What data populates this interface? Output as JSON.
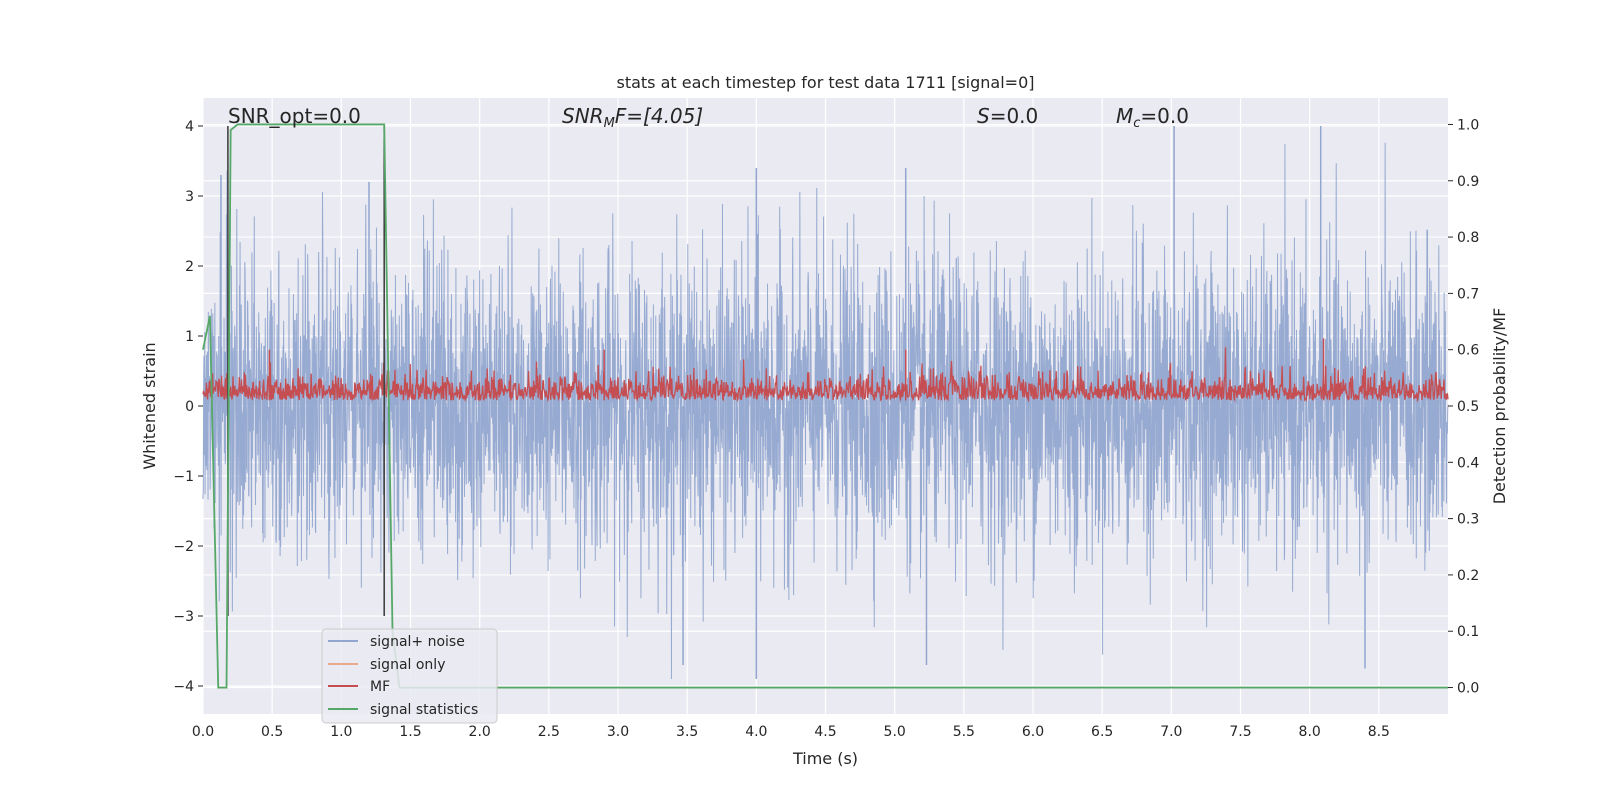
{
  "chart_data": {
    "type": "line",
    "title": "stats at each timestep for test data 1711 [signal=0]",
    "xlabel": "Time (s)",
    "ylabel": "Whitened strain",
    "y2label": "Detection probability/MF",
    "xlim": [
      0,
      9.0
    ],
    "ylim": [
      -4.4,
      4.4
    ],
    "y2lim": [
      -0.047,
      1.047
    ],
    "xticks": [
      "0.0",
      "0.5",
      "1.0",
      "1.5",
      "2.0",
      "2.5",
      "3.0",
      "3.5",
      "4.0",
      "4.5",
      "5.0",
      "5.5",
      "6.0",
      "6.5",
      "7.0",
      "7.5",
      "8.0",
      "8.5"
    ],
    "yticks": [
      "−4",
      "−3",
      "−2",
      "−1",
      "0",
      "1",
      "2",
      "3",
      "4"
    ],
    "y2ticks": [
      "0.0",
      "0.1",
      "0.2",
      "0.3",
      "0.4",
      "0.5",
      "0.6",
      "0.7",
      "0.8",
      "0.9",
      "1.0"
    ],
    "grid": true,
    "legend_position": "lower-left",
    "annotations": {
      "snr_opt": "SNR_opt=0.0",
      "snr_mf_prefix": "SNR",
      "snr_mf_sub": "M",
      "snr_mf_rest": "F=[4.05]",
      "s_label": "S",
      "s_rest": "=0.0",
      "mc_label": "M",
      "mc_sub": "c",
      "mc_rest": "=0.0"
    },
    "vertical_lines_x": [
      0.18,
      1.31
    ],
    "series": [
      {
        "name": "signal+ noise",
        "color": "#92a6cf",
        "envelope": {
          "typical_abs": 1.6,
          "max": 4.0,
          "min": -3.9
        },
        "peaks": [
          [
            0.13,
            3.3
          ],
          [
            1.2,
            3.2
          ],
          [
            4.0,
            3.4
          ],
          [
            5.08,
            3.4
          ],
          [
            7.02,
            4.0
          ],
          [
            8.08,
            4.0
          ],
          [
            4.0,
            -3.9
          ],
          [
            5.23,
            -3.7
          ],
          [
            8.4,
            -3.75
          ],
          [
            3.47,
            -3.7
          ]
        ]
      },
      {
        "name": "signal only",
        "color": "#e8a98c",
        "values_constant": 0.0
      },
      {
        "name": "MF",
        "color": "#c44e52",
        "axis": "y2",
        "baseline": 0.51,
        "range": [
          0.5,
          0.62
        ],
        "peaks": [
          [
            2.9,
            0.6
          ],
          [
            5.08,
            0.6
          ],
          [
            8.1,
            0.62
          ],
          [
            0.48,
            0.6
          ]
        ]
      },
      {
        "name": "signal statistics",
        "color": "#55a868",
        "axis": "y2",
        "x": [
          0.0,
          0.05,
          0.11,
          0.17,
          0.2,
          0.25,
          1.31,
          1.37,
          1.42,
          9.0
        ],
        "y": [
          0.6,
          0.66,
          0.0,
          0.0,
          0.99,
          1.0,
          1.0,
          0.1,
          0.0,
          0.0
        ]
      }
    ]
  }
}
